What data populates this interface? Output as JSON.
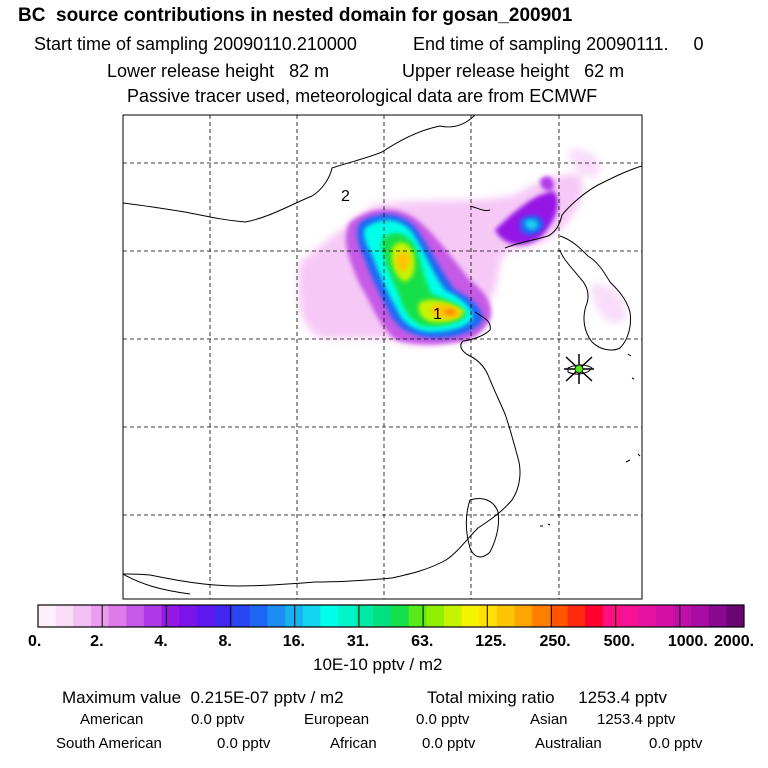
{
  "header": {
    "title": "BC  source contributions in nested domain for gosan_200901",
    "sampling_start_label": "Start time of sampling 20090110.210000",
    "sampling_end_label": "End time of sampling 20090111.     0",
    "lower_release_label": "Lower release height   82 m",
    "upper_release_label": "Upper release height   62 m",
    "tracer_note": "Passive tracer used, meteorological data are from ECMWF"
  },
  "chart_data": {
    "type": "heatmap",
    "title": "BC  source contributions in nested domain for gosan_200901",
    "colorbar": {
      "tick_labels": [
        "0.",
        "2.",
        "4.",
        "8.",
        "16.",
        "31.",
        "63.",
        "125.",
        "250.",
        "500.",
        "1000.",
        "2000."
      ],
      "units_label": "10E-10 pptv / m2",
      "colors": [
        "#fdf0fd",
        "#f9dcf9",
        "#f3c0f3",
        "#ec9cef",
        "#dd7be8",
        "#c65ae6",
        "#b03ae8",
        "#9618e6",
        "#7a14e8",
        "#5f18ee",
        "#4028f0",
        "#2a45f2",
        "#1d67f4",
        "#1d8df4",
        "#16b2f2",
        "#12d4ee",
        "#00ffe8",
        "#00f4c8",
        "#00eaa6",
        "#00e07e",
        "#13e048",
        "#58ea18",
        "#90f000",
        "#c6f400",
        "#f4f400",
        "#ffe000",
        "#ffc400",
        "#ffa500",
        "#ff7e00",
        "#ff5300",
        "#ff2a10",
        "#ff0030",
        "#ff1080",
        "#f51295",
        "#e612a0",
        "#d410a6",
        "#c00fa6",
        "#a80ca2",
        "#8a0890",
        "#6a0674"
      ]
    },
    "site_markers": [
      {
        "label": "1",
        "rank": 1
      },
      {
        "label": "2",
        "rank": 2
      }
    ],
    "receptor": "gosan",
    "statistics": {
      "maximum_value": "Maximum value  0.215E-07 pptv / m2",
      "total_mixing_ratio": "Total mixing ratio     1253.4 pptv",
      "contributions": [
        {
          "name": "American",
          "value": "0.0 pptv"
        },
        {
          "name": "European",
          "value": "0.0 pptv"
        },
        {
          "name": "Asian",
          "value": "1253.4 pptv"
        },
        {
          "name": "South American",
          "value": "0.0 pptv"
        },
        {
          "name": "African",
          "value": "0.0 pptv"
        },
        {
          "name": "Australian",
          "value": "0.0 pptv"
        }
      ]
    }
  }
}
